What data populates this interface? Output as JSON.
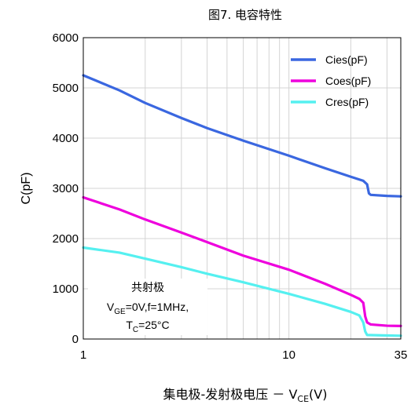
{
  "chart_data": {
    "type": "line",
    "title": "图7. 电容特性",
    "xlabel": {
      "prefix": "集电极-发射极电压 － V",
      "sub": "CE",
      "suffix": "(V)"
    },
    "ylabel": "C(pF)",
    "x_scale": "log",
    "xlim": [
      1,
      35
    ],
    "ylim": [
      0,
      6000
    ],
    "x_ticks": [
      1,
      10,
      35
    ],
    "x_tick_labels": [
      "1",
      "10",
      "35"
    ],
    "y_ticks": [
      0,
      1000,
      2000,
      3000,
      4000,
      5000,
      6000
    ],
    "y_tick_labels": [
      "0",
      "1000",
      "2000",
      "3000",
      "4000",
      "5000",
      "6000"
    ],
    "grid": true,
    "legend_position": "top-right",
    "series": [
      {
        "name": "Cies(pF)",
        "color": "#3a67e0",
        "points": [
          [
            1,
            5250
          ],
          [
            1.5,
            4950
          ],
          [
            2,
            4700
          ],
          [
            3,
            4400
          ],
          [
            4,
            4200
          ],
          [
            6,
            3950
          ],
          [
            10,
            3650
          ],
          [
            15,
            3400
          ],
          [
            20,
            3230
          ],
          [
            23,
            3150
          ],
          [
            24,
            3080
          ],
          [
            24.5,
            2900
          ],
          [
            25,
            2870
          ],
          [
            30,
            2850
          ],
          [
            35,
            2840
          ]
        ]
      },
      {
        "name": "Coes(pF)",
        "color": "#ee00dd",
        "points": [
          [
            1,
            2820
          ],
          [
            1.5,
            2580
          ],
          [
            2,
            2380
          ],
          [
            3,
            2120
          ],
          [
            4,
            1930
          ],
          [
            6,
            1660
          ],
          [
            10,
            1380
          ],
          [
            15,
            1100
          ],
          [
            20,
            880
          ],
          [
            22,
            800
          ],
          [
            23,
            720
          ],
          [
            23.5,
            450
          ],
          [
            24,
            330
          ],
          [
            25,
            290
          ],
          [
            30,
            265
          ],
          [
            35,
            260
          ]
        ]
      },
      {
        "name": "Cres(pF)",
        "color": "#55f0f0",
        "points": [
          [
            1,
            1820
          ],
          [
            1.5,
            1720
          ],
          [
            2,
            1600
          ],
          [
            3,
            1430
          ],
          [
            4,
            1300
          ],
          [
            6,
            1130
          ],
          [
            10,
            900
          ],
          [
            15,
            700
          ],
          [
            20,
            540
          ],
          [
            22,
            470
          ],
          [
            23,
            330
          ],
          [
            23.5,
            150
          ],
          [
            24,
            80
          ],
          [
            30,
            70
          ],
          [
            35,
            65
          ]
        ]
      }
    ],
    "annotation": {
      "line1": "共射极",
      "line2": {
        "v": "V",
        "sub": "GE",
        "rest": "=0V,f=1MHz,"
      },
      "line3": {
        "t": "T",
        "sub": "C",
        "rest": "=25°C"
      }
    }
  }
}
